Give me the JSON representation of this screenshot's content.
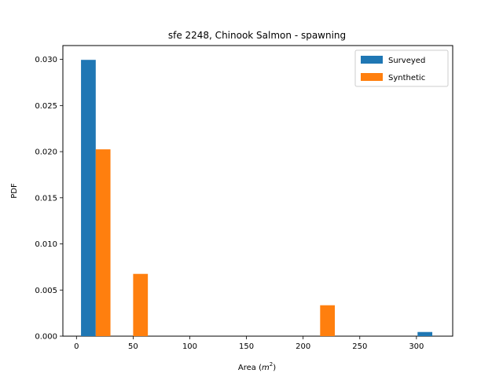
{
  "chart_data": {
    "type": "bar",
    "title": "sfe 2248, Chinook Salmon - spawning",
    "xlabel": "Area",
    "xlabel_unit_base": "m",
    "xlabel_unit_exp": "2",
    "ylabel": "PDF",
    "xlim": [
      -12,
      332
    ],
    "ylim": [
      0,
      0.0315
    ],
    "x_ticks": [
      0,
      50,
      100,
      150,
      200,
      250,
      300
    ],
    "y_ticks": [
      0.0,
      0.005,
      0.01,
      0.015,
      0.02,
      0.025,
      0.03
    ],
    "y_tick_labels": [
      "0.000",
      "0.005",
      "0.010",
      "0.015",
      "0.020",
      "0.025",
      "0.030"
    ],
    "grid": false,
    "legend_position": "top-right",
    "series": [
      {
        "name": "Surveyed",
        "color": "#1f77b4",
        "bars": [
          {
            "x0": 4,
            "x1": 17,
            "value": 0.02995
          },
          {
            "x0": 301,
            "x1": 314,
            "value": 0.00045
          }
        ]
      },
      {
        "name": "Synthetic",
        "color": "#ff7f0e",
        "bars": [
          {
            "x0": 17,
            "x1": 30,
            "value": 0.02025
          },
          {
            "x0": 50,
            "x1": 63,
            "value": 0.00675
          },
          {
            "x0": 215,
            "x1": 228,
            "value": 0.00335
          }
        ]
      }
    ]
  }
}
